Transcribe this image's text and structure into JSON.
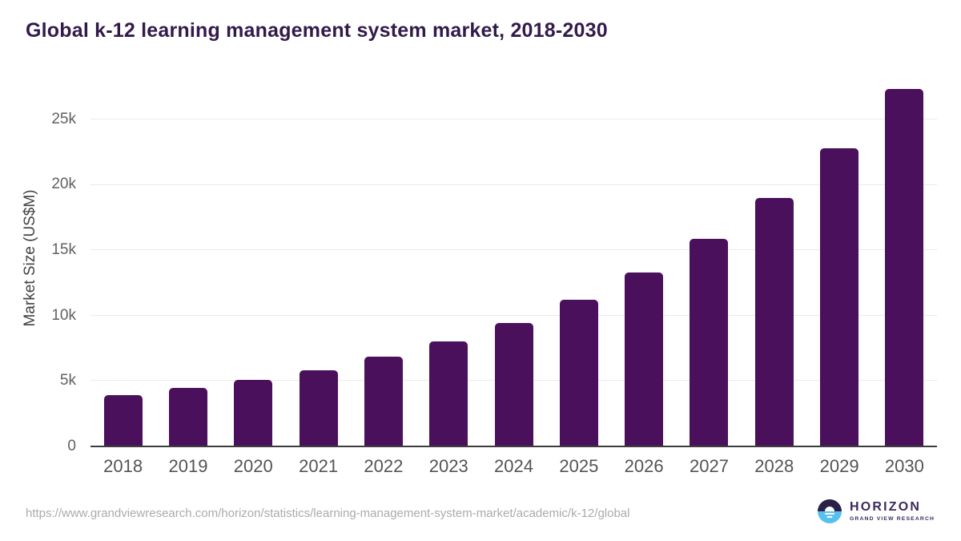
{
  "title": "Global k-12 learning management system market, 2018-2030",
  "chart_data": {
    "type": "bar",
    "title": "Global k-12 learning management system market, 2018-2030",
    "categories": [
      "2018",
      "2019",
      "2020",
      "2021",
      "2022",
      "2023",
      "2024",
      "2025",
      "2026",
      "2027",
      "2028",
      "2029",
      "2030"
    ],
    "values": [
      3900,
      4450,
      5100,
      5850,
      6850,
      8050,
      9450,
      11200,
      13300,
      15850,
      19000,
      22800,
      27300
    ],
    "xlabel": "",
    "ylabel": "Market Size (US$M)",
    "ylim": [
      0,
      28300
    ],
    "yticks": [
      {
        "value": 0,
        "label": "0"
      },
      {
        "value": 5000,
        "label": "5k"
      },
      {
        "value": 10000,
        "label": "10k"
      },
      {
        "value": 15000,
        "label": "15k"
      },
      {
        "value": 20000,
        "label": "20k"
      },
      {
        "value": 25000,
        "label": "25k"
      }
    ],
    "grid": true,
    "legend": "none",
    "bar_color": "#4a105c"
  },
  "colors": {
    "bar": "#4a105c",
    "title_text": "#321a4b",
    "gridline": "#ebebeb",
    "axis_line": "#3d3d3d",
    "ytick_text": "#616161",
    "xlabel_text": "#545454",
    "source_text": "#ababab",
    "logo_dark": "#2b2147",
    "logo_blue": "#56c1ee",
    "logo_text": "#3b2a5c",
    "background": "#ffffff"
  },
  "footer": {
    "source_url": "https://www.grandviewresearch.com/horizon/statistics/learning-management-system-market/academic/k-12/global",
    "logo": {
      "name": "HORIZON",
      "subtitle": "GRAND VIEW RESEARCH"
    }
  }
}
